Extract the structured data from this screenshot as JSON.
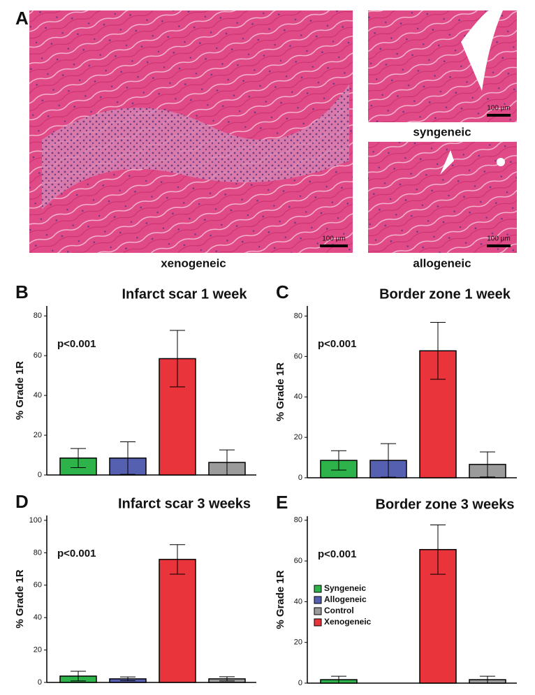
{
  "figure": {
    "panel_label": "A",
    "images": [
      {
        "caption": "xenogeneic",
        "scale_bar": "100 µm"
      },
      {
        "caption": "syngeneic",
        "scale_bar": "100 µm"
      },
      {
        "caption": "allogeneic",
        "scale_bar": "100 µm"
      }
    ]
  },
  "chart_data": [
    {
      "type": "bar",
      "panel": "B",
      "title": "Infarct scar 1 week",
      "annotation": "p<0.001",
      "ylabel": "% Grade 1R",
      "values": [
        8.5,
        8.5,
        58.5,
        6.3
      ],
      "errors": [
        4.8,
        8.2,
        14.2,
        6.3
      ],
      "colors": [
        "#2db34a",
        "#5560b0",
        "#e8343a",
        "#9b9b9b"
      ],
      "ylim": [
        0,
        85
      ],
      "yticks": [
        0,
        20,
        40,
        60,
        80
      ]
    },
    {
      "type": "bar",
      "panel": "C",
      "title": "Border zone 1 week",
      "annotation": "p<0.001",
      "ylabel": "% Grade 1R",
      "values": [
        8.6,
        8.6,
        62.8,
        6.6
      ],
      "errors": [
        4.8,
        8.3,
        14.1,
        6.2
      ],
      "colors": [
        "#2db34a",
        "#5560b0",
        "#e8343a",
        "#9b9b9b"
      ],
      "ylim": [
        0,
        85
      ],
      "yticks": [
        0,
        20,
        40,
        60,
        80
      ]
    },
    {
      "type": "bar",
      "panel": "D",
      "title": "Infarct scar 3 weeks",
      "annotation": "p<0.001",
      "ylabel": "% Grade 1R",
      "values": [
        3.9,
        2.2,
        75.9,
        2.2
      ],
      "errors": [
        3.0,
        1.2,
        9.1,
        1.3
      ],
      "colors": [
        "#2db34a",
        "#5560b0",
        "#e8343a",
        "#9b9b9b"
      ],
      "ylim": [
        0,
        103
      ],
      "yticks": [
        0,
        20,
        40,
        60,
        80,
        100
      ]
    },
    {
      "type": "bar",
      "panel": "E",
      "title": "Border zone 3 weeks",
      "annotation": "p<0.001",
      "ylabel": "% Grade 1R",
      "values": [
        1.7,
        0,
        65.6,
        1.7
      ],
      "errors": [
        1.7,
        0,
        12.1,
        1.7
      ],
      "colors": [
        "#2db34a",
        "#5560b0",
        "#e8343a",
        "#9b9b9b"
      ],
      "ylim": [
        0,
        82
      ],
      "yticks": [
        0,
        20,
        40,
        60,
        80
      ],
      "legend": [
        {
          "name": "Syngeneic",
          "color": "#2db34a"
        },
        {
          "name": "Allogeneic",
          "color": "#5560b0"
        },
        {
          "name": "Control",
          "color": "#9b9b9b"
        },
        {
          "name": "Xenogeneic",
          "color": "#e8343a"
        }
      ]
    }
  ]
}
